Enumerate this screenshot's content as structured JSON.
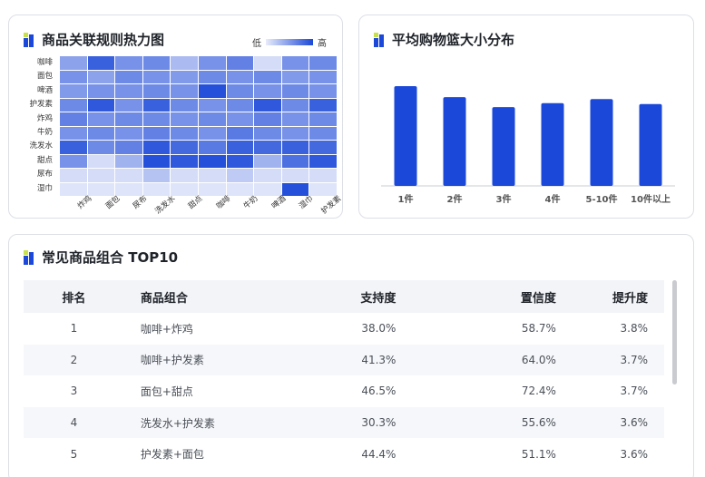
{
  "heatmap_panel": {
    "title": "商品关联规则热力图",
    "legend_low": "低",
    "legend_high": "高",
    "rows": [
      "咖啡",
      "面包",
      "啤酒",
      "护发素",
      "炸鸡",
      "牛奶",
      "洗发水",
      "甜点",
      "尿布",
      "湿巾"
    ],
    "cols": [
      "炸鸡",
      "面包",
      "尿布",
      "洗发水",
      "甜点",
      "咖啡",
      "牛奶",
      "啤酒",
      "湿巾",
      "护发素"
    ],
    "levels": [
      [
        0.45,
        0.85,
        0.55,
        0.6,
        0.3,
        0.55,
        0.65,
        0.1,
        0.55,
        0.6
      ],
      [
        0.55,
        0.45,
        0.6,
        0.55,
        0.5,
        0.6,
        0.55,
        0.6,
        0.5,
        0.55
      ],
      [
        0.5,
        0.55,
        0.55,
        0.6,
        0.55,
        0.95,
        0.6,
        0.55,
        0.6,
        0.55
      ],
      [
        0.6,
        0.9,
        0.55,
        0.85,
        0.6,
        0.55,
        0.6,
        0.9,
        0.6,
        0.85
      ],
      [
        0.65,
        0.55,
        0.6,
        0.6,
        0.55,
        0.6,
        0.55,
        0.65,
        0.55,
        0.6
      ],
      [
        0.55,
        0.6,
        0.55,
        0.65,
        0.6,
        0.55,
        0.7,
        0.6,
        0.55,
        0.6
      ],
      [
        0.85,
        0.6,
        0.65,
        0.9,
        0.8,
        0.7,
        0.85,
        0.8,
        0.85,
        0.8
      ],
      [
        0.55,
        0.1,
        0.35,
        0.95,
        0.9,
        0.95,
        0.9,
        0.35,
        0.75,
        0.9
      ],
      [
        0.1,
        0.1,
        0.1,
        0.25,
        0.1,
        0.1,
        0.2,
        0.1,
        0.1,
        0.1
      ],
      [
        0.05,
        0.05,
        0.05,
        0.05,
        0.05,
        0.05,
        0.05,
        0.05,
        0.95,
        0.05
      ]
    ],
    "color_low": "#e8ecfb",
    "color_high": "#1b48d8"
  },
  "basket_panel": {
    "title": "平均购物篮大小分布",
    "bar_color": "#1b48d8"
  },
  "chart_data": {
    "type": "bar",
    "categories": [
      "1件",
      "2件",
      "3件",
      "4件",
      "5-10件",
      "10件以上"
    ],
    "values": [
      100,
      89,
      79,
      83,
      87,
      82
    ],
    "ylim": [
      0,
      110
    ]
  },
  "table_panel": {
    "title": "常见商品组合 TOP10",
    "headers": [
      "排名",
      "商品组合",
      "支持度",
      "置信度",
      "提升度"
    ],
    "rows": [
      [
        "1",
        "咖啡+炸鸡",
        "38.0%",
        "58.7%",
        "3.8%"
      ],
      [
        "2",
        "咖啡+护发素",
        "41.3%",
        "64.0%",
        "3.7%"
      ],
      [
        "3",
        "面包+甜点",
        "46.5%",
        "72.4%",
        "3.7%"
      ],
      [
        "4",
        "洗发水+护发素",
        "30.3%",
        "55.6%",
        "3.6%"
      ],
      [
        "5",
        "护发素+面包",
        "44.4%",
        "51.1%",
        "3.6%"
      ]
    ]
  }
}
